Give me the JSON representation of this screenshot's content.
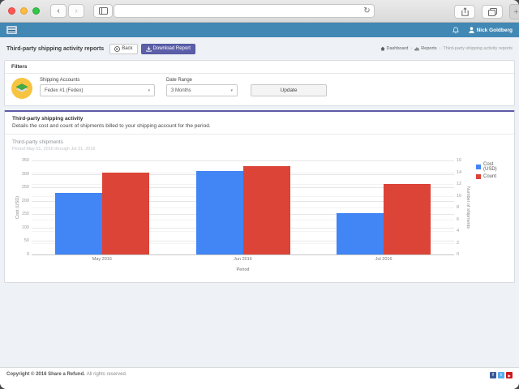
{
  "browser": {
    "address_value": "",
    "window_controls": [
      "close",
      "minimize",
      "zoom"
    ]
  },
  "icons": {
    "back_chevron": "‹",
    "forward_chevron": "›",
    "refresh": "↻",
    "new_tab": "+",
    "breadcrumb_separator": "›",
    "select_caret": "▾",
    "facebook_glyph": "f",
    "twitter_glyph": "t",
    "youtube_glyph": "▶"
  },
  "navbar": {
    "user_name": "Nick Goldberg"
  },
  "header": {
    "title": "Third-party shipping activity reports",
    "back_label": "Back",
    "download_label": "Download Report",
    "breadcrumb": {
      "dashboard": "Dashboard",
      "reports": "Reports",
      "current": "Third-party shipping activity reports"
    }
  },
  "filters": {
    "title": "Filters",
    "shipping_accounts_label": "Shipping Accounts",
    "shipping_accounts_value": "Fedex #1 (Fedex)",
    "date_range_label": "Date Range",
    "date_range_value": "3 Months",
    "update_label": "Update"
  },
  "report": {
    "title": "Third-party shipping activity",
    "description": "Details the cost and count of shipments billed to your shipping account for the period."
  },
  "chart_data": {
    "type": "bar",
    "title": "Third-party shipments",
    "subtitle": "Period May 01, 2016 through Jul 31, 2016",
    "categories": [
      "May 2016",
      "Jun 2016",
      "Jul 2016"
    ],
    "series": [
      {
        "name": "Cost (USD)",
        "axis": "left",
        "color": "#4285f4",
        "values": [
          230,
          312,
          153
        ]
      },
      {
        "name": "Count",
        "axis": "right",
        "color": "#db4437",
        "values": [
          14,
          15,
          12
        ]
      }
    ],
    "xlabel": "Period",
    "ylabel_left": "Cost (USD)",
    "ylabel_right": "Number of shipments",
    "ylim_left": [
      0,
      350
    ],
    "ylim_right": [
      0,
      16
    ],
    "yticks_left": [
      0,
      50,
      100,
      150,
      200,
      250,
      300,
      350
    ],
    "yticks_right": [
      0,
      2,
      4,
      6,
      8,
      10,
      12,
      14,
      16
    ],
    "grid": true,
    "legend_position": "right"
  },
  "footer": {
    "copyright_bold": "Copyright © 2016 Share a Refund.",
    "copyright_normal": "All rights reserved.",
    "social": [
      "facebook",
      "twitter",
      "youtube"
    ],
    "social_colors": {
      "facebook": "#3b5998",
      "twitter": "#55acee",
      "youtube": "#cc181e"
    }
  },
  "colors": {
    "navbar": "#4288b5",
    "accent_purple": "#5c5fa8",
    "chart_blue": "#4285f4",
    "chart_red": "#db4437"
  }
}
